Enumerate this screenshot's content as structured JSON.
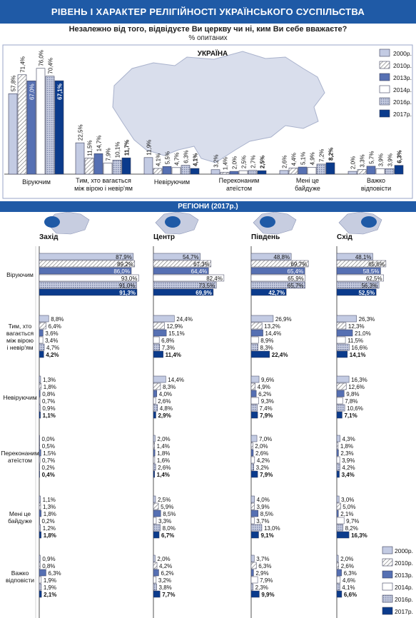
{
  "header": {
    "title": "РІВЕНЬ І ХАРАКТЕР РЕЛІГІЙНОСТІ УКРАЇНСЬКОГО СУСПІЛЬСТВА",
    "question": "Незалежно від того, відвідуєте Ви церкву чи ні, ким Ви себе вважаєте?",
    "unit": "% опитаних"
  },
  "colors": {
    "brand": "#1f5aa6",
    "s2000": "#c3cbe3",
    "s2010": "#ffffff",
    "s2013": "#5670b3",
    "s2014": "#ffffff",
    "s2016": "#b8bfd8",
    "s2017": "#0b3b8c"
  },
  "chart_data": [
    {
      "type": "bar",
      "title": "УКРАЇНА",
      "categories": [
        "Віруючим",
        "Тим, хто вагається між вірою і невір'ям",
        "Невіруючим",
        "Переконаним атеїстом",
        "Мені це байдуже",
        "Важко відповісти"
      ],
      "category_lines": [
        [
          "Віруючим"
        ],
        [
          "Тим, хто вагається",
          "між вірою і невір'ям"
        ],
        [
          "Невіруючим"
        ],
        [
          "Переконаним",
          "атеїстом"
        ],
        [
          "Мені це",
          "байдуже"
        ],
        [
          "Важко",
          "відповісти"
        ]
      ],
      "series": [
        {
          "name": "2000р.",
          "values": [
            57.8,
            22.5,
            11.9,
            3.2,
            2.6,
            2.0
          ]
        },
        {
          "name": "2010р.",
          "values": [
            71.4,
            11.5,
            4.1,
            1.4,
            4.4,
            3.3
          ]
        },
        {
          "name": "2013р.",
          "values": [
            67.0,
            14.7,
            5.5,
            2.0,
            5.1,
            5.7
          ]
        },
        {
          "name": "2014р.",
          "values": [
            76.0,
            7.9,
            4.7,
            2.5,
            4.9,
            3.9
          ]
        },
        {
          "name": "2016р.",
          "values": [
            70.4,
            10.1,
            6.3,
            2.7,
            7.2,
            3.9
          ]
        },
        {
          "name": "2017р.",
          "values": [
            67.1,
            11.7,
            4.1,
            2.5,
            8.2,
            6.3
          ]
        }
      ],
      "ylim": [
        0,
        80
      ],
      "legend": "right"
    },
    {
      "type": "bar",
      "orientation": "horizontal",
      "title": "РЕГІОНИ (2017р.)",
      "regions": [
        "Захід",
        "Центр",
        "Південь",
        "Схід"
      ],
      "categories": [
        "Віруючим",
        "Тим, хто вагається між вірою і невір'ям",
        "Невіруючим",
        "Переконаним атеїстом",
        "Мені це байдуже",
        "Важко відповісти"
      ],
      "category_lines": [
        [
          "Віруючим"
        ],
        [
          "Тим, хто",
          "вагається",
          "між вірою",
          "і невір'ям"
        ],
        [
          "Невіруючим"
        ],
        [
          "Переконаним",
          "атеїстом"
        ],
        [
          "Мені це",
          "байдуже"
        ],
        [
          "Важко",
          "відповісти"
        ]
      ],
      "series_names": [
        "2000р.",
        "2010р.",
        "2013р.",
        "2014р.",
        "2016р.",
        "2017р."
      ],
      "values": {
        "Захід": [
          [
            87.9,
            89.2,
            86.0,
            93.0,
            91.0,
            91.3
          ],
          [
            8.8,
            6.4,
            3.6,
            3.4,
            4.7,
            4.2
          ],
          [
            1.3,
            1.8,
            0.8,
            0.7,
            0.9,
            1.1
          ],
          [
            0.0,
            0.5,
            1.5,
            0.7,
            0.2,
            0.4
          ],
          [
            1.1,
            1.3,
            1.8,
            0.2,
            1.2,
            1.8
          ],
          [
            0.9,
            0.8,
            6.3,
            1.9,
            1.9,
            2.1
          ]
        ],
        "Центр": [
          [
            54.7,
            67.3,
            64.4,
            82.4,
            73.5,
            69.9
          ],
          [
            24.4,
            12.9,
            15.1,
            6.8,
            7.3,
            11.4
          ],
          [
            14.4,
            8.3,
            4.0,
            2.6,
            4.8,
            2.9
          ],
          [
            2.0,
            1.4,
            1.8,
            1.6,
            2.6,
            1.4
          ],
          [
            2.5,
            5.9,
            8.5,
            3.3,
            8.0,
            6.7
          ],
          [
            2.0,
            4.2,
            6.2,
            3.2,
            3.8,
            7.7
          ]
        ],
        "Південь": [
          [
            48.8,
            69.7,
            65.4,
            65.9,
            65.7,
            42.7
          ],
          [
            26.9,
            13.2,
            14.4,
            8.9,
            8.3,
            22.4
          ],
          [
            9.6,
            4.9,
            6.2,
            9.3,
            7.4,
            7.9
          ],
          [
            7.0,
            2.0,
            2.6,
            4.2,
            3.2,
            7.9
          ],
          [
            4.0,
            3.9,
            8.5,
            3.7,
            13.0,
            9.1
          ],
          [
            3.7,
            6.3,
            2.9,
            7.9,
            2.3,
            9.9
          ]
        ],
        "Схід": [
          [
            48.1,
            65.6,
            58.5,
            62.5,
            56.3,
            52.5
          ],
          [
            26.3,
            12.3,
            21.0,
            11.5,
            16.6,
            14.1
          ],
          [
            16.3,
            12.6,
            9.8,
            7.8,
            10.6,
            7.1
          ],
          [
            4.3,
            1.8,
            2.3,
            3.9,
            4.2,
            3.4
          ],
          [
            3.0,
            5.0,
            2.1,
            9.7,
            8.2,
            16.3
          ],
          [
            2.0,
            2.6,
            6.3,
            4.6,
            4.1,
            6.6
          ]
        ]
      },
      "legend": "bottom-right"
    }
  ]
}
